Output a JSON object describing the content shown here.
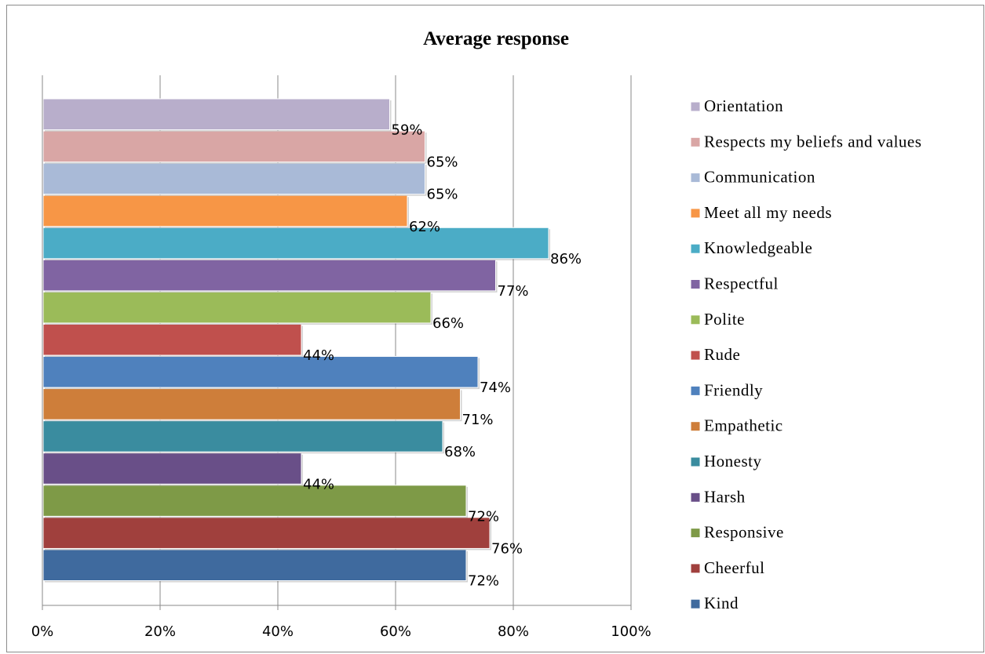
{
  "chart_data": {
    "type": "bar",
    "orientation": "horizontal",
    "title": "Average response",
    "xlabel": "",
    "ylabel": "",
    "xlim": [
      0,
      100
    ],
    "x_ticks": [
      "0%",
      "20%",
      "40%",
      "60%",
      "80%",
      "100%"
    ],
    "grid": "vertical",
    "legend_position": "right",
    "series": [
      {
        "name": "Kind",
        "value": 72,
        "label": "72%",
        "color": "#3F6A9E"
      },
      {
        "name": "Cheerful",
        "value": 76,
        "label": "76%",
        "color": "#A0403D"
      },
      {
        "name": "Responsive",
        "value": 72,
        "label": "72%",
        "color": "#7E9A47"
      },
      {
        "name": "Harsh",
        "value": 44,
        "label": "44%",
        "color": "#694F88"
      },
      {
        "name": "Honesty",
        "value": 68,
        "label": "68%",
        "color": "#3A8C9F"
      },
      {
        "name": "Empathetic",
        "value": 71,
        "label": "71%",
        "color": "#CE7E3A"
      },
      {
        "name": "Friendly",
        "value": 74,
        "label": "74%",
        "color": "#4F81BD"
      },
      {
        "name": "Rude",
        "value": 44,
        "label": "44%",
        "color": "#C0504D"
      },
      {
        "name": "Polite",
        "value": 66,
        "label": "66%",
        "color": "#9BBB59"
      },
      {
        "name": "Respectful",
        "value": 77,
        "label": "77%",
        "color": "#8064A2"
      },
      {
        "name": "Knowledgeable",
        "value": 86,
        "label": "86%",
        "color": "#4BACC6"
      },
      {
        "name": "Meet all my needs",
        "value": 62,
        "label": "62%",
        "color": "#F79646"
      },
      {
        "name": "Communication",
        "value": 65,
        "label": "65%",
        "color": "#A9BAD7"
      },
      {
        "name": "Respects my beliefs and values",
        "value": 65,
        "label": "65%",
        "color": "#D9A6A5"
      },
      {
        "name": "Orientation",
        "value": 59,
        "label": "59%",
        "color": "#B8AECB"
      }
    ]
  }
}
